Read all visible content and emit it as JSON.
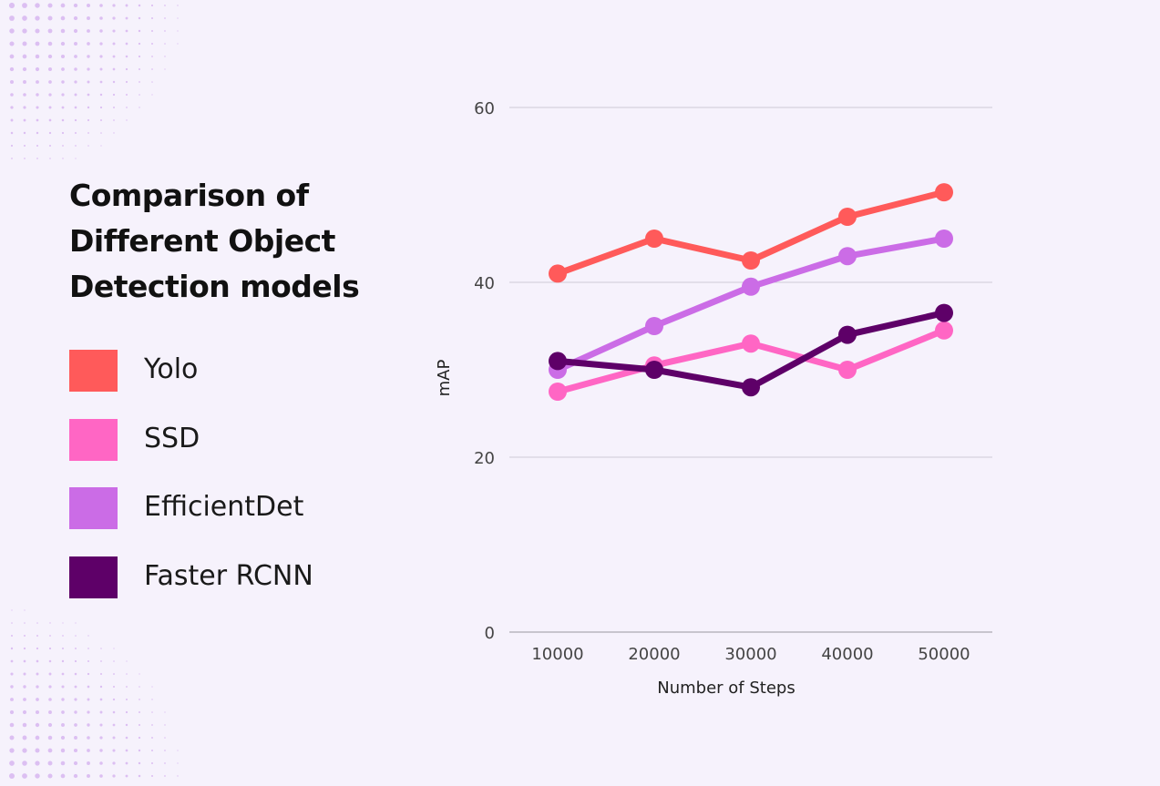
{
  "title": "Comparison of Different Object Detection models",
  "legend": [
    {
      "label": "Yolo",
      "color": "#ff5a5a"
    },
    {
      "label": "SSD",
      "color": "#ff66c4"
    },
    {
      "label": "EfficientDet",
      "color": "#cb6ce6"
    },
    {
      "label": "Faster RCNN",
      "color": "#5e0068"
    }
  ],
  "chart_data": {
    "type": "line",
    "title": "Comparison of Different Object Detection models",
    "xlabel": "Number of Steps",
    "ylabel": "mAP",
    "categories": [
      "10000",
      "20000",
      "30000",
      "40000",
      "50000"
    ],
    "ylim": [
      0,
      60
    ],
    "yticks": [
      0,
      20,
      40,
      60
    ],
    "grid": true,
    "series": [
      {
        "name": "Yolo",
        "color": "#ff5a5a",
        "values": [
          41,
          45,
          42.5,
          47.5,
          50.3
        ]
      },
      {
        "name": "SSD",
        "color": "#ff66c4",
        "values": [
          27.5,
          30.5,
          33,
          30,
          34.5
        ]
      },
      {
        "name": "EfficientDet",
        "color": "#cb6ce6",
        "values": [
          30,
          35,
          39.5,
          43,
          45
        ]
      },
      {
        "name": "Faster RCNN",
        "color": "#5e0068",
        "values": [
          31,
          30,
          28,
          34,
          36.5
        ]
      }
    ]
  }
}
